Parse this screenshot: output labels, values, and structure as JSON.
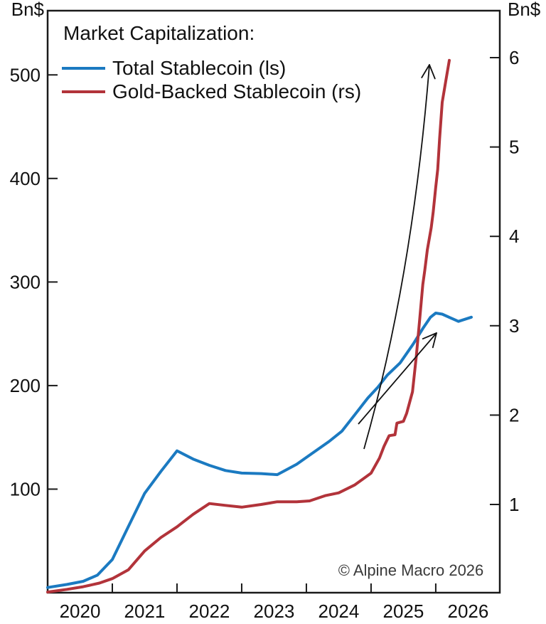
{
  "chart_data": {
    "type": "line",
    "title": "Market Capitalization:",
    "copyright": "© Alpine Macro 2026",
    "x_axis": {
      "range": [
        2020,
        2026.99
      ],
      "boundary_ticks": [
        2021,
        2022,
        2023,
        2024,
        2025,
        2026
      ],
      "year_labels": [
        "2020",
        "2021",
        "2022",
        "2023",
        "2024",
        "2025",
        "2026"
      ]
    },
    "y_left": {
      "unit": "Bn$",
      "ticks": [
        100,
        200,
        300,
        400,
        500
      ],
      "range": [
        0,
        562
      ]
    },
    "y_right": {
      "unit": "Bn$",
      "ticks": [
        1,
        2,
        3,
        4,
        5,
        6
      ],
      "range": [
        0,
        6.5
      ]
    },
    "series": [
      {
        "name": "Total Stablecoin (ls)",
        "axis": "left",
        "color": "#1b7ac1",
        "points": [
          [
            2020.0,
            5
          ],
          [
            2020.3,
            8
          ],
          [
            2020.55,
            11
          ],
          [
            2020.77,
            17
          ],
          [
            2021.0,
            32
          ],
          [
            2021.25,
            64
          ],
          [
            2021.5,
            96
          ],
          [
            2021.75,
            117
          ],
          [
            2022.0,
            137
          ],
          [
            2022.25,
            129
          ],
          [
            2022.5,
            123
          ],
          [
            2022.75,
            118
          ],
          [
            2023.0,
            115.5
          ],
          [
            2023.3,
            115
          ],
          [
            2023.55,
            114
          ],
          [
            2023.85,
            124
          ],
          [
            2024.1,
            135
          ],
          [
            2024.35,
            146
          ],
          [
            2024.55,
            156
          ],
          [
            2024.75,
            172
          ],
          [
            2024.95,
            188
          ],
          [
            2025.1,
            198
          ],
          [
            2025.25,
            210
          ],
          [
            2025.45,
            222
          ],
          [
            2025.65,
            240
          ],
          [
            2025.8,
            255
          ],
          [
            2025.92,
            266
          ],
          [
            2026.0,
            270
          ],
          [
            2026.1,
            269
          ],
          [
            2026.35,
            262
          ],
          [
            2026.55,
            266
          ]
        ]
      },
      {
        "name": "Gold-Backed Stablecoin (rs)",
        "axis": "right",
        "color": "#b2333a",
        "points": [
          [
            2020.0,
            0.02
          ],
          [
            2020.3,
            0.05
          ],
          [
            2020.55,
            0.08
          ],
          [
            2020.8,
            0.12
          ],
          [
            2021.0,
            0.17
          ],
          [
            2021.25,
            0.27
          ],
          [
            2021.5,
            0.48
          ],
          [
            2021.75,
            0.63
          ],
          [
            2022.0,
            0.75
          ],
          [
            2022.25,
            0.89
          ],
          [
            2022.5,
            1.01
          ],
          [
            2022.75,
            0.99
          ],
          [
            2023.0,
            0.97
          ],
          [
            2023.3,
            1.0
          ],
          [
            2023.55,
            1.03
          ],
          [
            2023.85,
            1.03
          ],
          [
            2024.05,
            1.04
          ],
          [
            2024.3,
            1.1
          ],
          [
            2024.5,
            1.13
          ],
          [
            2024.75,
            1.22
          ],
          [
            2025.0,
            1.35
          ],
          [
            2025.13,
            1.52
          ],
          [
            2025.2,
            1.65
          ],
          [
            2025.28,
            1.77
          ],
          [
            2025.37,
            1.78
          ],
          [
            2025.4,
            1.91
          ],
          [
            2025.5,
            1.93
          ],
          [
            2025.55,
            2.02
          ],
          [
            2025.64,
            2.26
          ],
          [
            2025.7,
            2.66
          ],
          [
            2025.75,
            3.06
          ],
          [
            2025.8,
            3.46
          ],
          [
            2025.83,
            3.62
          ],
          [
            2025.87,
            3.85
          ],
          [
            2025.93,
            4.1
          ],
          [
            2025.96,
            4.27
          ],
          [
            2026.0,
            4.55
          ],
          [
            2026.03,
            4.75
          ],
          [
            2026.06,
            5.1
          ],
          [
            2026.1,
            5.5
          ],
          [
            2026.16,
            5.76
          ],
          [
            2026.21,
            5.97
          ]
        ]
      }
    ],
    "annotations": [
      {
        "type": "arrow",
        "name": "surge-arrow-gold",
        "from": [
          512,
          631
        ],
        "control": [
          580,
          392
        ],
        "to": [
          604,
          91
        ]
      },
      {
        "type": "arrow",
        "name": "surge-arrow-total",
        "from": [
          504,
          596
        ],
        "to": [
          614,
          468
        ]
      }
    ]
  }
}
